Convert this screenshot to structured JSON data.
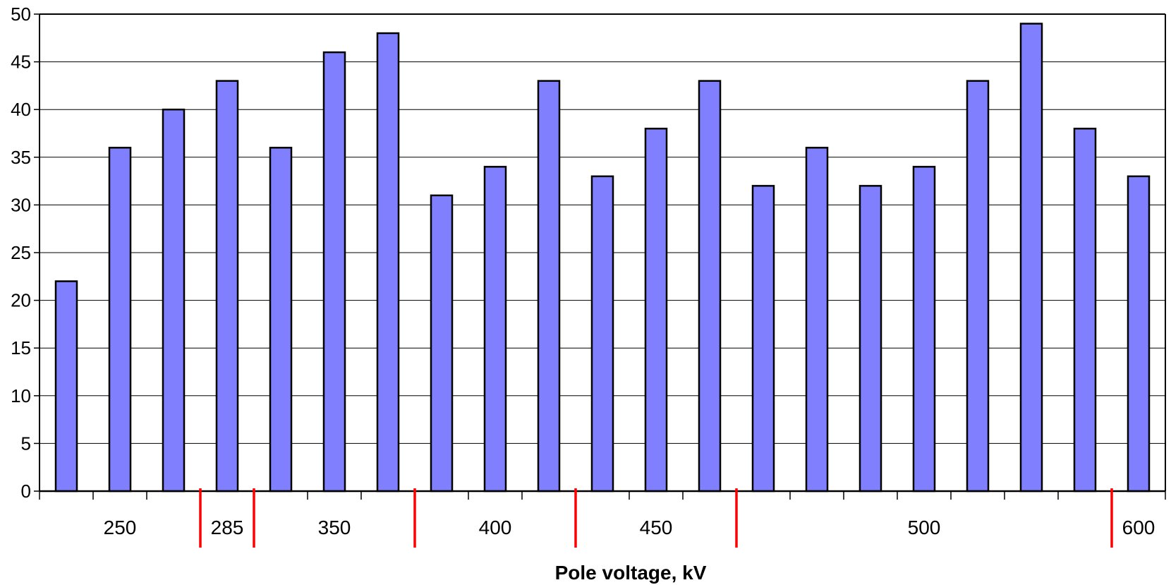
{
  "chart_data": {
    "type": "bar",
    "xlabel": "Pole voltage, kV",
    "ylabel": "",
    "ylim": [
      0,
      50
    ],
    "yticks": [
      0,
      5,
      10,
      15,
      20,
      25,
      30,
      35,
      40,
      45,
      50
    ],
    "grid": "horizontal",
    "values": [
      22,
      36,
      40,
      43,
      36,
      46,
      48,
      31,
      34,
      43,
      33,
      38,
      43,
      32,
      36,
      32,
      34,
      43,
      49,
      38,
      33
    ],
    "groups": [
      {
        "label": "250",
        "bars": 3
      },
      {
        "label": "285",
        "bars": 1
      },
      {
        "label": "350",
        "bars": 3
      },
      {
        "label": "400",
        "bars": 3
      },
      {
        "label": "450",
        "bars": 3
      },
      {
        "label": "500",
        "bars": 7
      },
      {
        "label": "600",
        "bars": 1
      }
    ],
    "colors": {
      "bar_fill": "#8080ff",
      "bar_stroke": "#000000",
      "gridline": "#000000",
      "group_separator": "#ff0000"
    }
  }
}
